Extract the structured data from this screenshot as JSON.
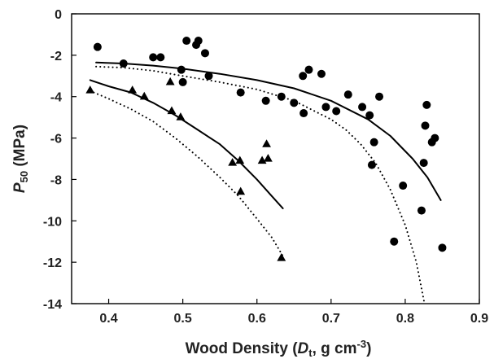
{
  "chart_data": {
    "type": "scatter",
    "xlabel": "Wood Density (D_t, g cm^-3)",
    "xlabel_parts": {
      "before": "Wood Density (",
      "var": "D",
      "sub": "t",
      "mid": ", g cm",
      "sup": "-3",
      "after": ")"
    },
    "ylabel": "P50 (MPa)",
    "ylabel_parts": {
      "var": "P",
      "sub": "50",
      "after": " (MPa)"
    },
    "xlim": [
      0.35,
      0.9
    ],
    "ylim": [
      -14,
      0
    ],
    "x_ticks": [
      0.4,
      0.5,
      0.6,
      0.7,
      0.8,
      0.9
    ],
    "y_ticks": [
      0,
      -2,
      -4,
      -6,
      -8,
      -10,
      -12,
      -14
    ],
    "x_tick_labels": [
      "0.4",
      "0.5",
      "0.6",
      "0.7",
      "0.8",
      "0.9"
    ],
    "y_tick_labels": [
      "0",
      "-2",
      "-4",
      "-6",
      "-8",
      "-10",
      "-12",
      "-14"
    ],
    "grid": false,
    "legend": "none",
    "series": [
      {
        "marker": "circle",
        "color": "#000000",
        "points": [
          [
            0.385,
            -1.6
          ],
          [
            0.42,
            -2.4
          ],
          [
            0.46,
            -2.1
          ],
          [
            0.47,
            -2.1
          ],
          [
            0.498,
            -2.7
          ],
          [
            0.5,
            -3.3
          ],
          [
            0.505,
            -1.3
          ],
          [
            0.518,
            -1.5
          ],
          [
            0.521,
            -1.3
          ],
          [
            0.53,
            -1.9
          ],
          [
            0.535,
            -3.0
          ],
          [
            0.578,
            -3.8
          ],
          [
            0.612,
            -4.2
          ],
          [
            0.633,
            -4.0
          ],
          [
            0.65,
            -4.3
          ],
          [
            0.662,
            -3.0
          ],
          [
            0.663,
            -4.8
          ],
          [
            0.67,
            -2.7
          ],
          [
            0.687,
            -2.9
          ],
          [
            0.693,
            -4.5
          ],
          [
            0.707,
            -4.7
          ],
          [
            0.723,
            -3.9
          ],
          [
            0.742,
            -4.5
          ],
          [
            0.752,
            -4.9
          ],
          [
            0.755,
            -7.3
          ],
          [
            0.758,
            -6.2
          ],
          [
            0.765,
            -4.0
          ],
          [
            0.785,
            -11.0
          ],
          [
            0.797,
            -8.3
          ],
          [
            0.822,
            -9.5
          ],
          [
            0.825,
            -7.2
          ],
          [
            0.827,
            -5.4
          ],
          [
            0.829,
            -4.4
          ],
          [
            0.836,
            -6.2
          ],
          [
            0.84,
            -6.0
          ],
          [
            0.85,
            -11.3
          ]
        ]
      },
      {
        "marker": "triangle",
        "color": "#000000",
        "points": [
          [
            0.375,
            -3.7
          ],
          [
            0.432,
            -3.7
          ],
          [
            0.448,
            -4.0
          ],
          [
            0.483,
            -3.3
          ],
          [
            0.485,
            -4.7
          ],
          [
            0.497,
            -5.0
          ],
          [
            0.567,
            -7.2
          ],
          [
            0.577,
            -7.1
          ],
          [
            0.578,
            -8.6
          ],
          [
            0.607,
            -7.1
          ],
          [
            0.613,
            -6.3
          ],
          [
            0.615,
            -7.0
          ],
          [
            0.633,
            -11.8
          ]
        ]
      }
    ],
    "curves": [
      {
        "name": "circles-fit",
        "style": "solid",
        "points": [
          [
            0.383,
            -2.35
          ],
          [
            0.42,
            -2.4
          ],
          [
            0.46,
            -2.5
          ],
          [
            0.5,
            -2.65
          ],
          [
            0.55,
            -2.9
          ],
          [
            0.6,
            -3.2
          ],
          [
            0.65,
            -3.6
          ],
          [
            0.7,
            -4.2
          ],
          [
            0.75,
            -5.1
          ],
          [
            0.78,
            -5.9
          ],
          [
            0.81,
            -7.0
          ],
          [
            0.83,
            -7.9
          ],
          [
            0.848,
            -9.0
          ]
        ]
      },
      {
        "name": "circles-bound",
        "style": "dotted",
        "points": [
          [
            0.383,
            -2.55
          ],
          [
            0.42,
            -2.6
          ],
          [
            0.46,
            -2.75
          ],
          [
            0.5,
            -3.0
          ],
          [
            0.55,
            -3.3
          ],
          [
            0.6,
            -3.65
          ],
          [
            0.65,
            -4.2
          ],
          [
            0.7,
            -5.1
          ],
          [
            0.72,
            -5.6
          ],
          [
            0.74,
            -6.3
          ],
          [
            0.76,
            -7.2
          ],
          [
            0.78,
            -8.5
          ],
          [
            0.8,
            -10.2
          ],
          [
            0.815,
            -12.0
          ],
          [
            0.826,
            -14.0
          ]
        ]
      },
      {
        "name": "triangles-fit",
        "style": "solid",
        "points": [
          [
            0.375,
            -3.2
          ],
          [
            0.4,
            -3.5
          ],
          [
            0.43,
            -3.8
          ],
          [
            0.46,
            -4.3
          ],
          [
            0.49,
            -4.9
          ],
          [
            0.52,
            -5.6
          ],
          [
            0.55,
            -6.3
          ],
          [
            0.575,
            -7.1
          ],
          [
            0.6,
            -8.0
          ],
          [
            0.62,
            -8.8
          ],
          [
            0.635,
            -9.4
          ]
        ]
      },
      {
        "name": "triangles-bound",
        "style": "dotted",
        "points": [
          [
            0.38,
            -3.8
          ],
          [
            0.4,
            -4.1
          ],
          [
            0.43,
            -4.6
          ],
          [
            0.46,
            -5.2
          ],
          [
            0.49,
            -6.0
          ],
          [
            0.52,
            -6.9
          ],
          [
            0.55,
            -7.9
          ],
          [
            0.575,
            -8.8
          ],
          [
            0.6,
            -9.9
          ],
          [
            0.62,
            -10.8
          ],
          [
            0.635,
            -11.7
          ]
        ]
      }
    ]
  }
}
